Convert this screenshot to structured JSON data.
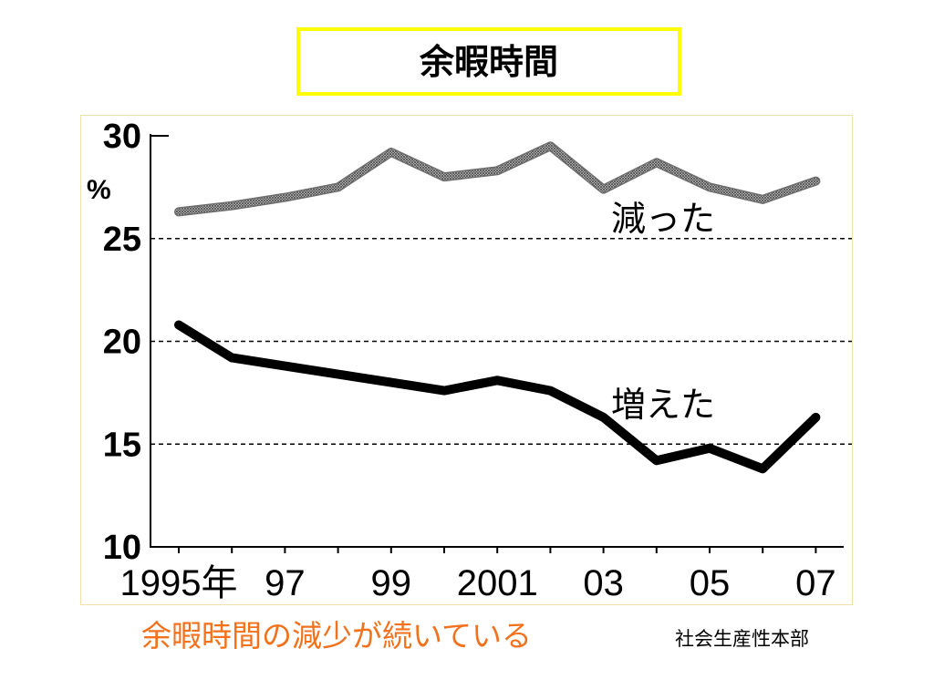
{
  "slide": {
    "title": "余暇時間",
    "caption": "余暇時間の減少が続いている",
    "source": "社会生産性本部"
  },
  "colors": {
    "title_border": "#ffff00",
    "caption_text": "#f2711c",
    "frame_border": "#f1e0a9",
    "gridline": "#000000"
  },
  "chart_data": {
    "type": "line",
    "x": [
      1995,
      1996,
      1997,
      1998,
      1999,
      2000,
      2001,
      2002,
      2003,
      2004,
      2005,
      2006,
      2007
    ],
    "x_tick_values": [
      1995,
      1997,
      1999,
      2001,
      2003,
      2005,
      2007
    ],
    "x_tick_labels": [
      "1995年",
      "97",
      "99",
      "2001",
      "03",
      "05",
      "07"
    ],
    "ylabel": "%",
    "ylim": [
      10,
      30
    ],
    "y_ticks": [
      30,
      25,
      20,
      15,
      10
    ],
    "grid_lines": [
      25,
      20,
      15
    ],
    "grid_style": "dashed",
    "legend": "labels placed next to lines",
    "series": [
      {
        "name": "減った",
        "line_style": "hatched",
        "color": "#6e6e6e",
        "values": [
          26.3,
          26.6,
          27.0,
          27.5,
          29.2,
          28.0,
          28.3,
          29.5,
          27.4,
          28.7,
          27.5,
          26.9,
          27.8
        ]
      },
      {
        "name": "増えた",
        "line_style": "solid",
        "color": "#000000",
        "values": [
          20.8,
          19.2,
          18.8,
          18.4,
          18.0,
          17.6,
          18.1,
          17.6,
          16.3,
          14.2,
          14.8,
          13.8,
          16.3
        ]
      }
    ]
  }
}
